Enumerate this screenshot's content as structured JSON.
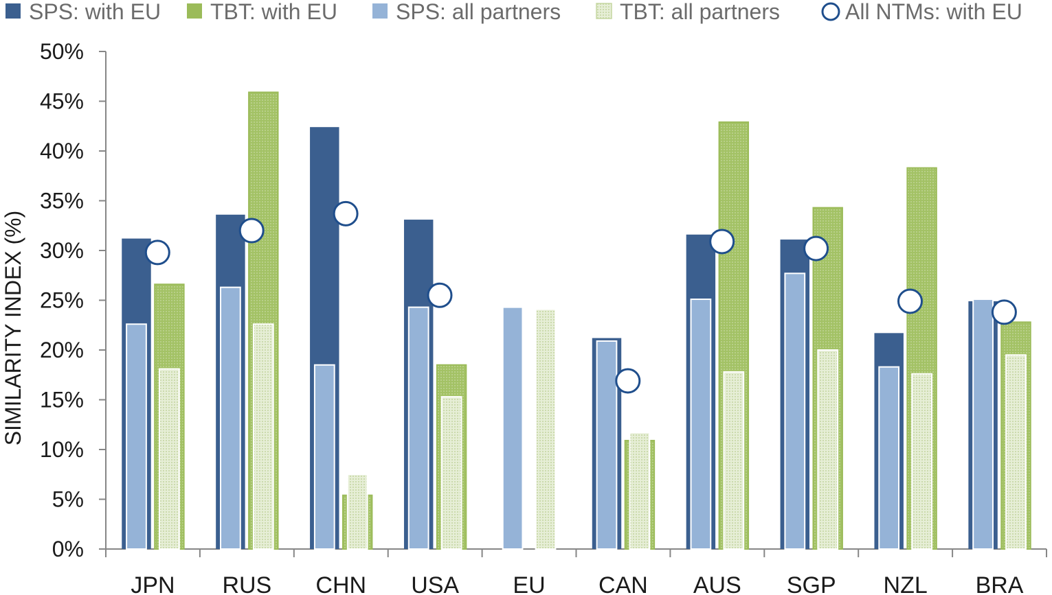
{
  "chart_data": {
    "type": "bar",
    "ylabel": "SIMILARITY INDEX (%)",
    "xlabel": "",
    "title": "",
    "ylim": [
      0,
      50
    ],
    "y_ticks": [
      0,
      5,
      10,
      15,
      20,
      25,
      30,
      35,
      40,
      45,
      50
    ],
    "y_tick_labels": [
      "0%",
      "5%",
      "10%",
      "15%",
      "20%",
      "25%",
      "30%",
      "35%",
      "40%",
      "45%",
      "50%"
    ],
    "grid": false,
    "legend_position": "top",
    "categories": [
      "JPN",
      "RUS",
      "CHN",
      "USA",
      "EU",
      "CAN",
      "AUS",
      "SGP",
      "NZL",
      "BRA"
    ],
    "series": [
      {
        "name": "SPS: with EU",
        "kind": "bar",
        "color": "#3b5f8f",
        "values": [
          31.2,
          33.6,
          42.4,
          33.1,
          null,
          21.2,
          31.6,
          31.1,
          21.7,
          24.9
        ]
      },
      {
        "name": "TBT: with EU",
        "kind": "bar",
        "color": "#9bbb59",
        "values": [
          26.6,
          45.9,
          5.4,
          18.5,
          null,
          10.9,
          42.9,
          34.3,
          38.3,
          22.8
        ]
      },
      {
        "name": "SPS: all partners",
        "kind": "bar",
        "color": "#95b3d7",
        "values": [
          22.6,
          26.3,
          18.5,
          24.3,
          24.3,
          20.9,
          25.1,
          27.7,
          18.3,
          25.1
        ]
      },
      {
        "name": "TBT: all partners",
        "kind": "bar",
        "color": "#d7e4bd",
        "values": [
          18.1,
          22.6,
          7.5,
          15.3,
          24.1,
          11.7,
          17.8,
          20.0,
          17.6,
          19.5
        ]
      },
      {
        "name": "All NTMs: with EU",
        "kind": "marker",
        "color": "#1f4e8c",
        "values": [
          29.8,
          32.0,
          33.7,
          25.5,
          null,
          16.9,
          30.9,
          30.2,
          24.9,
          23.8
        ]
      }
    ]
  }
}
